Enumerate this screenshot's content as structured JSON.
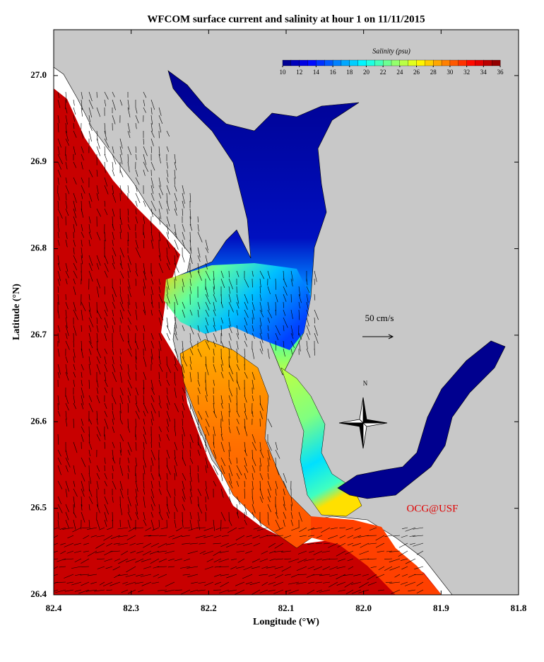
{
  "map": {
    "title": "WFCOM surface current and salinity at hour 1 on 11/11/2015",
    "x_axis": {
      "label": "Longitude (°W)",
      "lim": [
        82.4,
        81.8
      ],
      "ticks": [
        {
          "value": 82.4,
          "label": "82.4"
        },
        {
          "value": 82.3,
          "label": "82.3"
        },
        {
          "value": 82.2,
          "label": "82.2"
        },
        {
          "value": 82.1,
          "label": "82.1"
        },
        {
          "value": 82,
          "label": "82.0"
        },
        {
          "value": 81.9,
          "label": "81.9"
        },
        {
          "value": 81.8,
          "label": "81.8"
        }
      ]
    },
    "y_axis": {
      "label": "Latitude (°N)",
      "lim": [
        26.4,
        27.053
      ],
      "ticks": [
        {
          "value": 26.4,
          "label": "26.4"
        },
        {
          "value": 26.5,
          "label": "26.5"
        },
        {
          "value": 26.6,
          "label": "26.6"
        },
        {
          "value": 26.7,
          "label": "26.7"
        },
        {
          "value": 26.8,
          "label": "26.8"
        },
        {
          "value": 26.9,
          "label": "26.9"
        },
        {
          "value": 27,
          "label": "27.0"
        }
      ]
    },
    "colorbar": {
      "title": "Salinity (psu)",
      "colormap": "jet",
      "lim": [
        10,
        36
      ],
      "ticks": [
        10,
        12,
        14,
        16,
        18,
        20,
        22,
        24,
        26,
        28,
        30,
        32,
        34,
        36
      ]
    },
    "scale_label": "50 cm/s",
    "north_label": "N",
    "credit": "OCG@USF"
  }
}
